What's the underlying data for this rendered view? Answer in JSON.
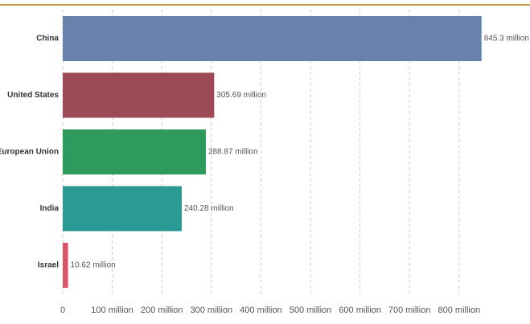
{
  "chart_data": {
    "type": "bar",
    "orientation": "horizontal",
    "categories": [
      "China",
      "United States",
      "European Union",
      "India",
      "Israel"
    ],
    "values": [
      845.3,
      305.69,
      288.87,
      240.28,
      10.62
    ],
    "value_labels": [
      "845.3 million",
      "305.69 million",
      "288.87 million",
      "240.28 million",
      "10.62 million"
    ],
    "colors": [
      "#6a81ad",
      "#9b4a56",
      "#2f9a5d",
      "#2b9994",
      "#d9566a"
    ],
    "xlim": [
      0,
      850
    ],
    "xticks": [
      0,
      {
        "value": 100,
        "label": "100 million"
      },
      {
        "value": 200,
        "label": "200 million"
      },
      {
        "value": 300,
        "label": "300 million"
      },
      {
        "value": 400,
        "label": "400 million"
      },
      {
        "value": 500,
        "label": "500 million"
      },
      {
        "value": 600,
        "label": "600 million"
      },
      {
        "value": 700,
        "label": "700 million"
      },
      {
        "value": 800,
        "label": "800 million"
      }
    ],
    "grid": true
  }
}
